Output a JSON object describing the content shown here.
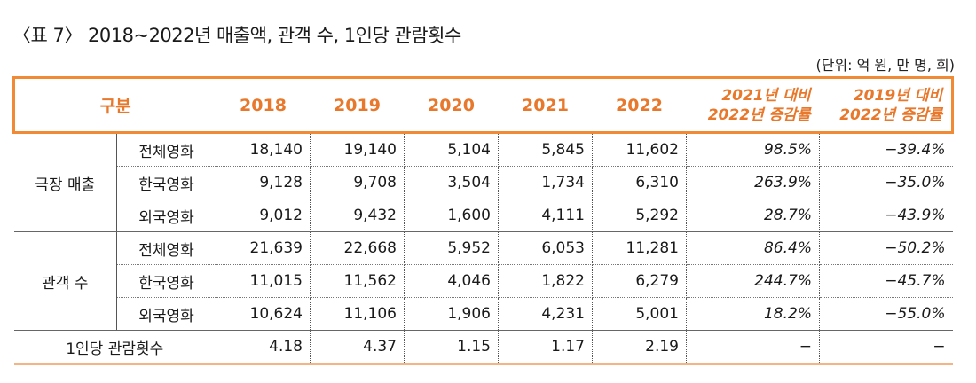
{
  "title": "〈표 7〉 2018~2022년 매출액, 관객 수, 1인당 관람횟수",
  "unit": "(단위: 억 원, 만 명, 회)",
  "header": {
    "category": "구분",
    "years": [
      "2018",
      "2019",
      "2020",
      "2021",
      "2022"
    ],
    "rate1_line1": "2021년 대비",
    "rate1_line2": "2022년 증감률",
    "rate2_line1": "2019년 대비",
    "rate2_line2": "2022년 증감률"
  },
  "groups": [
    {
      "name": "극장 매출",
      "rows": [
        {
          "label": "전체영화",
          "v": [
            "18,140",
            "19,140",
            "5,104",
            "5,845",
            "11,602"
          ],
          "r1": "98.5%",
          "r2": "−39.4%"
        },
        {
          "label": "한국영화",
          "v": [
            "9,128",
            "9,708",
            "3,504",
            "1,734",
            "6,310"
          ],
          "r1": "263.9%",
          "r2": "−35.0%"
        },
        {
          "label": "외국영화",
          "v": [
            "9,012",
            "9,432",
            "1,600",
            "4,111",
            "5,292"
          ],
          "r1": "28.7%",
          "r2": "−43.9%"
        }
      ]
    },
    {
      "name": "관객 수",
      "rows": [
        {
          "label": "전체영화",
          "v": [
            "21,639",
            "22,668",
            "5,952",
            "6,053",
            "11,281"
          ],
          "r1": "86.4%",
          "r2": "−50.2%"
        },
        {
          "label": "한국영화",
          "v": [
            "11,015",
            "11,562",
            "4,046",
            "1,822",
            "6,279"
          ],
          "r1": "244.7%",
          "r2": "−45.7%"
        },
        {
          "label": "외국영화",
          "v": [
            "10,624",
            "11,106",
            "1,906",
            "4,231",
            "5,001"
          ],
          "r1": "18.2%",
          "r2": "−55.0%"
        }
      ]
    }
  ],
  "per_capita": {
    "label": "1인당 관람횟수",
    "v": [
      "4.18",
      "4.37",
      "1.15",
      "1.17",
      "2.19"
    ],
    "r1": "−",
    "r2": "−"
  }
}
